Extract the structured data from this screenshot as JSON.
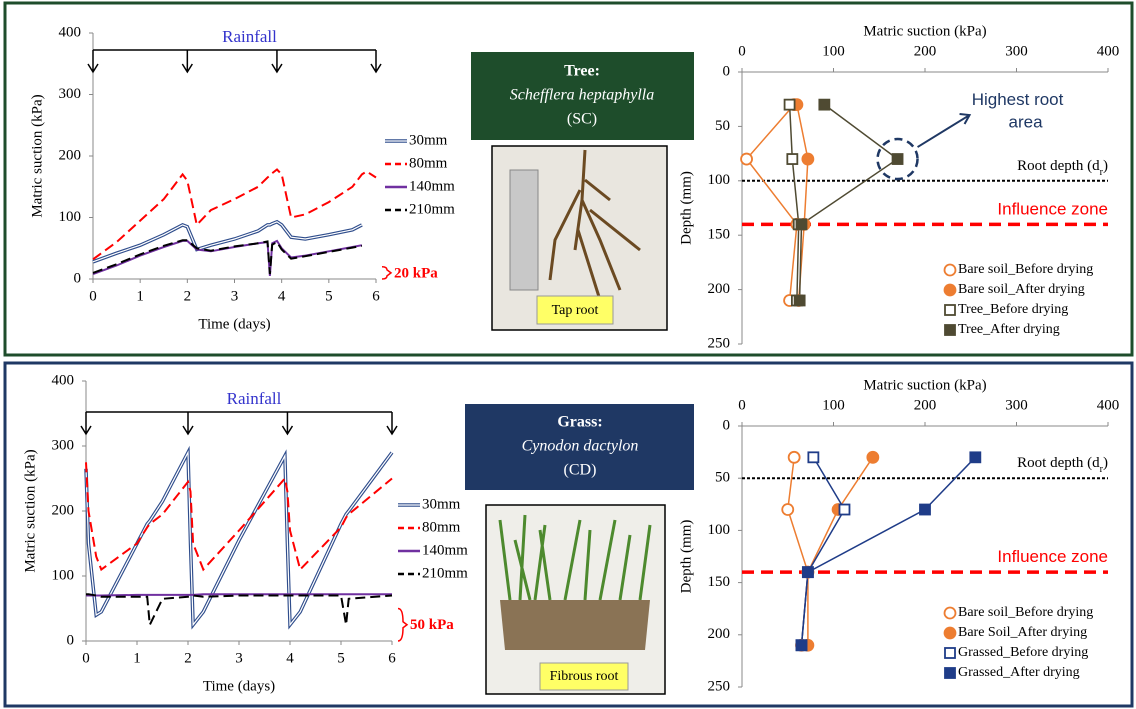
{
  "panels": [
    {
      "species": {
        "group": "Tree:",
        "name": "Schefflera heptaphylla",
        "code": "(SC)"
      },
      "photo_label": "Tap root"
    },
    {
      "species": {
        "group": "Grass:",
        "name": "Cynodon dactylon",
        "code": "(CD)"
      },
      "photo_label": "Fibrous root"
    }
  ],
  "chart_data": [
    {
      "type": "line",
      "x_label": "Time (days)",
      "y_label": "Matric suction (kPa)",
      "x": [
        0,
        0.5,
        1,
        1.5,
        1.9,
        2.0,
        2.2,
        2.5,
        3,
        3.5,
        3.7,
        3.75,
        3.8,
        3.9,
        4.0,
        4.2,
        4.5,
        5,
        5.5,
        5.7,
        5.8,
        6.0
      ],
      "xlim": [
        0,
        6
      ],
      "xticks": [
        0,
        1,
        2,
        3,
        4,
        5,
        6
      ],
      "ylim": [
        0,
        400
      ],
      "yticks": [
        0,
        100,
        200,
        300,
        400
      ],
      "series": [
        {
          "name": "30mm",
          "color": "#2f4d8c",
          "style": "double",
          "values": [
            28,
            42,
            55,
            72,
            88,
            85,
            48,
            55,
            65,
            78,
            88,
            88,
            90,
            93,
            88,
            68,
            65,
            72,
            80,
            88,
            null,
            null
          ]
        },
        {
          "name": "80mm",
          "color": "#ff0000",
          "style": "dashed",
          "values": [
            32,
            60,
            95,
            130,
            170,
            160,
            88,
            112,
            130,
            150,
            165,
            168,
            172,
            178,
            170,
            100,
            105,
            125,
            150,
            170,
            175,
            165
          ]
        },
        {
          "name": "140mm",
          "color": "#7030a0",
          "style": "solid",
          "values": [
            8,
            22,
            38,
            52,
            62,
            62,
            48,
            45,
            52,
            58,
            60,
            5,
            58,
            62,
            50,
            35,
            38,
            45,
            52,
            55,
            null,
            null
          ]
        },
        {
          "name": "210mm",
          "color": "#000000",
          "style": "dashed",
          "values": [
            10,
            24,
            40,
            54,
            63,
            63,
            50,
            46,
            53,
            58,
            61,
            8,
            56,
            60,
            48,
            33,
            37,
            44,
            51,
            54,
            null,
            null
          ]
        }
      ],
      "rainfall": {
        "label": "Rainfall",
        "x": [
          0,
          2,
          3.9,
          6
        ]
      },
      "scale_bar": {
        "label": "20 kPa",
        "value": 20
      }
    },
    {
      "type": "profile",
      "x_label": "Matric suction (kPa)",
      "y_label": "Depth (mm)",
      "y": [
        30,
        80,
        140,
        210
      ],
      "xlim": [
        0,
        400
      ],
      "xticks": [
        0,
        100,
        200,
        300,
        400
      ],
      "ylim": [
        0,
        250
      ],
      "yticks": [
        0,
        50,
        100,
        150,
        200,
        250
      ],
      "series": [
        {
          "name": "Bare soil_Before drying",
          "color": "#ed7d31",
          "marker": "circle",
          "filled": false,
          "values": [
            57,
            5,
            60,
            52
          ]
        },
        {
          "name": "Bare soil_After drying",
          "color": "#ed7d31",
          "marker": "circle",
          "filled": true,
          "values": [
            60,
            72,
            68,
            62
          ]
        },
        {
          "name": "Tree_Before drying",
          "color": "#4f4a32",
          "marker": "square",
          "filled": false,
          "values": [
            52,
            55,
            62,
            60
          ]
        },
        {
          "name": "Tree_After drying",
          "color": "#4f4a32",
          "marker": "square",
          "filled": true,
          "values": [
            90,
            170,
            65,
            63
          ]
        }
      ],
      "ref_lines": [
        {
          "value": 100,
          "text": "Root depth (d",
          "sub": "r",
          "suffix": ")",
          "color": "#000000",
          "style": "dotted"
        },
        {
          "value": 140,
          "text": "Influence zone",
          "color": "#ff0000",
          "style": "dashed"
        }
      ],
      "highlight_label": "Highest root area"
    },
    {
      "type": "line",
      "x_label": "Time (days)",
      "y_label": "Matric suction (kPa)",
      "x": [
        0,
        0.05,
        0.2,
        0.3,
        1,
        1.2,
        1.25,
        1.5,
        2.0,
        2.05,
        2.1,
        2.3,
        3,
        3.9,
        3.95,
        4.0,
        4.2,
        5,
        5.1,
        5.15,
        6
      ],
      "xlim": [
        0,
        6
      ],
      "xticks": [
        0,
        1,
        2,
        3,
        4,
        5,
        6
      ],
      "ylim": [
        0,
        400
      ],
      "yticks": [
        0,
        100,
        200,
        300,
        400
      ],
      "series": [
        {
          "name": "30mm",
          "color": "#2f4d8c",
          "style": "double",
          "values": [
            265,
            150,
            40,
            45,
            150,
            180,
            185,
            215,
            290,
            150,
            25,
            45,
            155,
            285,
            150,
            25,
            45,
            180,
            195,
            200,
            290
          ]
        },
        {
          "name": "80mm",
          "color": "#ff0000",
          "style": "dashed",
          "values": [
            275,
            200,
            130,
            110,
            150,
            175,
            180,
            195,
            245,
            230,
            150,
            110,
            170,
            250,
            230,
            170,
            110,
            175,
            190,
            195,
            250
          ]
        },
        {
          "name": "140mm",
          "color": "#7030a0",
          "style": "solid",
          "values": [
            70,
            70,
            70,
            70,
            71,
            71,
            71,
            71,
            71,
            71,
            71,
            72,
            72,
            72,
            72,
            72,
            72,
            72,
            72,
            72,
            72
          ]
        },
        {
          "name": "210mm",
          "color": "#000000",
          "style": "dashed",
          "values": [
            72,
            72,
            70,
            68,
            68,
            68,
            25,
            65,
            68,
            68,
            70,
            68,
            70,
            70,
            70,
            70,
            70,
            70,
            25,
            65,
            70
          ]
        }
      ],
      "rainfall": {
        "label": "Rainfall",
        "x": [
          0,
          2,
          3.95,
          6
        ]
      },
      "scale_bar": {
        "label": "50 kPa",
        "value": 50
      }
    },
    {
      "type": "profile",
      "x_label": "Matric suction (kPa)",
      "y_label": "Depth (mm)",
      "y": [
        30,
        80,
        140,
        210
      ],
      "xlim": [
        0,
        400
      ],
      "xticks": [
        0,
        100,
        200,
        300,
        400
      ],
      "ylim": [
        0,
        250
      ],
      "yticks": [
        0,
        50,
        100,
        150,
        200,
        250
      ],
      "series": [
        {
          "name": "Bare soil_Before drying",
          "color": "#ed7d31",
          "marker": "circle",
          "filled": false,
          "values": [
            57,
            50,
            72,
            65
          ]
        },
        {
          "name": "Bare Soil_After drying",
          "color": "#ed7d31",
          "marker": "circle",
          "filled": true,
          "values": [
            143,
            105,
            72,
            72
          ]
        },
        {
          "name": "Grassed_Before drying",
          "color": "#1f3c88",
          "marker": "square",
          "filled": false,
          "values": [
            78,
            112,
            72,
            65
          ]
        },
        {
          "name": "Grassed_After drying",
          "color": "#1f3c88",
          "marker": "square",
          "filled": true,
          "values": [
            255,
            200,
            72,
            65
          ]
        }
      ],
      "ref_lines": [
        {
          "value": 50,
          "text": "Root depth (d",
          "sub": "r",
          "suffix": ")",
          "color": "#000000",
          "style": "dotted"
        },
        {
          "value": 140,
          "text": "Influence zone",
          "color": "#ff0000",
          "style": "dashed"
        }
      ]
    }
  ]
}
